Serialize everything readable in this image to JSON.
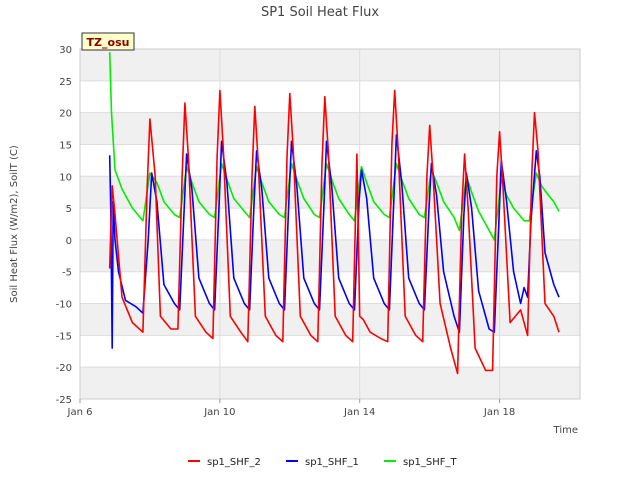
{
  "chart_data": {
    "type": "line",
    "title": "SP1 Soil Heat Flux",
    "xlabel": "Time",
    "ylabel": "Soil Heat Flux (W/m2), SoilT (C)",
    "ylim": [
      -25,
      30
    ],
    "xlim_days": [
      6,
      20.3
    ],
    "y_ticks": [
      -25,
      -20,
      -15,
      -10,
      -5,
      0,
      5,
      10,
      15,
      20,
      25,
      30
    ],
    "x_ticks": [
      {
        "label": "Jan 6",
        "day": 6
      },
      {
        "label": "Jan 10",
        "day": 10
      },
      {
        "label": "Jan 14",
        "day": 14
      },
      {
        "label": "Jan 18",
        "day": 18
      }
    ],
    "grid": true,
    "banded_background": true,
    "legend_position": "bottom-center",
    "annotation": "TZ_osu",
    "series": [
      {
        "name": "sp1_SHF_2",
        "color": "#ff0000",
        "x": [
          6.85,
          6.88,
          6.92,
          7.0,
          7.2,
          7.5,
          7.8,
          7.92,
          8.0,
          8.15,
          8.3,
          8.6,
          8.8,
          8.92,
          9.0,
          9.1,
          9.3,
          9.6,
          9.8,
          9.92,
          10.0,
          10.1,
          10.3,
          10.6,
          10.8,
          10.92,
          11.0,
          11.1,
          11.3,
          11.6,
          11.8,
          11.92,
          12.0,
          12.1,
          12.3,
          12.6,
          12.8,
          12.92,
          13.0,
          13.1,
          13.3,
          13.6,
          13.8,
          13.92,
          14.0,
          14.1,
          14.3,
          14.6,
          14.8,
          14.92,
          15.0,
          15.1,
          15.3,
          15.6,
          15.8,
          15.92,
          16.0,
          16.1,
          16.3,
          16.6,
          16.8,
          16.92,
          17.0,
          17.1,
          17.3,
          17.6,
          17.8,
          17.92,
          18.0,
          18.1,
          18.3,
          18.6,
          18.8,
          18.92,
          19.0,
          19.1,
          19.3,
          19.55,
          19.7
        ],
        "y": [
          -4.5,
          1.8,
          8.5,
          4.0,
          -9.0,
          -13.0,
          -14.5,
          8.0,
          19.0,
          10.0,
          -12.0,
          -14.0,
          -14.0,
          10.0,
          21.5,
          13.0,
          -12.0,
          -14.5,
          -15.5,
          13.0,
          23.5,
          14.0,
          -12.0,
          -14.5,
          -16.0,
          10.0,
          21.0,
          12.0,
          -12.0,
          -15.0,
          -16.0,
          13.0,
          23.0,
          14.0,
          -12.0,
          -15.0,
          -16.0,
          12.0,
          22.5,
          14.0,
          -12.0,
          -15.0,
          -16.0,
          13.5,
          -12.0,
          -12.5,
          -14.5,
          -15.5,
          -16.0,
          15.0,
          23.5,
          14.0,
          -12.0,
          -15.0,
          -16.0,
          10.0,
          18.0,
          10.0,
          -10.0,
          -17.0,
          -21.0,
          5.0,
          13.5,
          5.0,
          -17.0,
          -20.5,
          -20.5,
          10.0,
          17.0,
          8.0,
          -13.0,
          -11.0,
          -15.0,
          10.0,
          20.0,
          14.0,
          -10.0,
          -12.0,
          -14.5
        ]
      },
      {
        "name": "sp1_SHF_1",
        "color": "#0000ff",
        "x": [
          6.85,
          6.88,
          6.92,
          6.95,
          7.0,
          7.1,
          7.3,
          7.6,
          7.8,
          7.95,
          8.05,
          8.2,
          8.4,
          8.7,
          8.85,
          8.98,
          9.05,
          9.2,
          9.4,
          9.7,
          9.85,
          9.98,
          10.05,
          10.2,
          10.4,
          10.7,
          10.85,
          10.98,
          11.05,
          11.2,
          11.4,
          11.7,
          11.85,
          11.98,
          12.05,
          12.2,
          12.4,
          12.7,
          12.85,
          12.98,
          13.05,
          13.2,
          13.4,
          13.7,
          13.85,
          13.98,
          14.05,
          14.2,
          14.4,
          14.7,
          14.85,
          14.98,
          15.05,
          15.2,
          15.4,
          15.7,
          15.85,
          15.98,
          16.05,
          16.2,
          16.4,
          16.7,
          16.85,
          16.98,
          17.05,
          17.2,
          17.4,
          17.7,
          17.85,
          17.98,
          18.05,
          18.2,
          18.4,
          18.6,
          18.7,
          18.8,
          18.9,
          19.05,
          19.15,
          19.3,
          19.55,
          19.7
        ],
        "y": [
          13.3,
          4.5,
          -17.0,
          6.0,
          0.0,
          -5.0,
          -9.5,
          -10.5,
          -11.5,
          0.0,
          10.5,
          6.0,
          -7.0,
          -10.0,
          -11.0,
          5.0,
          13.5,
          8.0,
          -6.0,
          -10.0,
          -11.0,
          6.0,
          15.5,
          9.0,
          -6.0,
          -10.0,
          -11.0,
          6.0,
          14.0,
          8.0,
          -6.0,
          -10.0,
          -11.0,
          7.0,
          15.5,
          8.5,
          -6.0,
          -10.0,
          -11.0,
          6.0,
          15.5,
          8.5,
          -6.0,
          -10.0,
          -11.0,
          6.0,
          11.0,
          6.5,
          -6.0,
          -10.0,
          -11.0,
          7.0,
          16.5,
          9.0,
          -6.0,
          -10.0,
          -11.0,
          5.0,
          12.0,
          7.0,
          -5.0,
          -12.0,
          -14.5,
          4.0,
          10.5,
          5.0,
          -8.0,
          -14.0,
          -14.5,
          3.0,
          12.5,
          6.0,
          -5.0,
          -10.0,
          -7.5,
          -9.0,
          3.0,
          14.0,
          10.0,
          -2.0,
          -7.0,
          -9.0
        ]
      },
      {
        "name": "sp1_SHF_T",
        "color": "#00ee00",
        "x": [
          6.85,
          6.9,
          7.0,
          7.2,
          7.5,
          7.8,
          8.0,
          8.2,
          8.4,
          8.7,
          8.85,
          9.05,
          9.2,
          9.4,
          9.7,
          9.85,
          10.05,
          10.2,
          10.4,
          10.7,
          10.85,
          11.05,
          11.2,
          11.4,
          11.7,
          11.85,
          12.05,
          12.2,
          12.4,
          12.7,
          12.85,
          13.05,
          13.2,
          13.4,
          13.7,
          13.85,
          14.05,
          14.2,
          14.4,
          14.7,
          14.85,
          15.05,
          15.2,
          15.4,
          15.7,
          15.85,
          16.05,
          16.2,
          16.4,
          16.7,
          16.85,
          17.05,
          17.2,
          17.4,
          17.7,
          17.85,
          18.05,
          18.2,
          18.4,
          18.7,
          18.85,
          19.05,
          19.2,
          19.4,
          19.55,
          19.7
        ],
        "y": [
          29.5,
          20.0,
          11.0,
          8.0,
          5.0,
          3.0,
          10.5,
          9.0,
          6.0,
          4.0,
          3.5,
          11.5,
          9.0,
          6.0,
          4.0,
          3.5,
          12.0,
          9.5,
          6.5,
          4.5,
          3.5,
          11.5,
          9.0,
          6.0,
          4.0,
          3.5,
          12.0,
          9.5,
          6.5,
          4.0,
          3.5,
          12.0,
          9.5,
          6.5,
          4.0,
          3.0,
          11.5,
          9.0,
          6.0,
          4.0,
          3.5,
          12.0,
          9.5,
          6.5,
          4.0,
          3.5,
          11.0,
          9.0,
          6.0,
          3.5,
          1.5,
          10.0,
          7.5,
          4.5,
          1.5,
          0.0,
          9.5,
          7.0,
          5.0,
          3.0,
          3.0,
          10.5,
          8.5,
          7.0,
          6.0,
          4.5
        ]
      }
    ]
  }
}
